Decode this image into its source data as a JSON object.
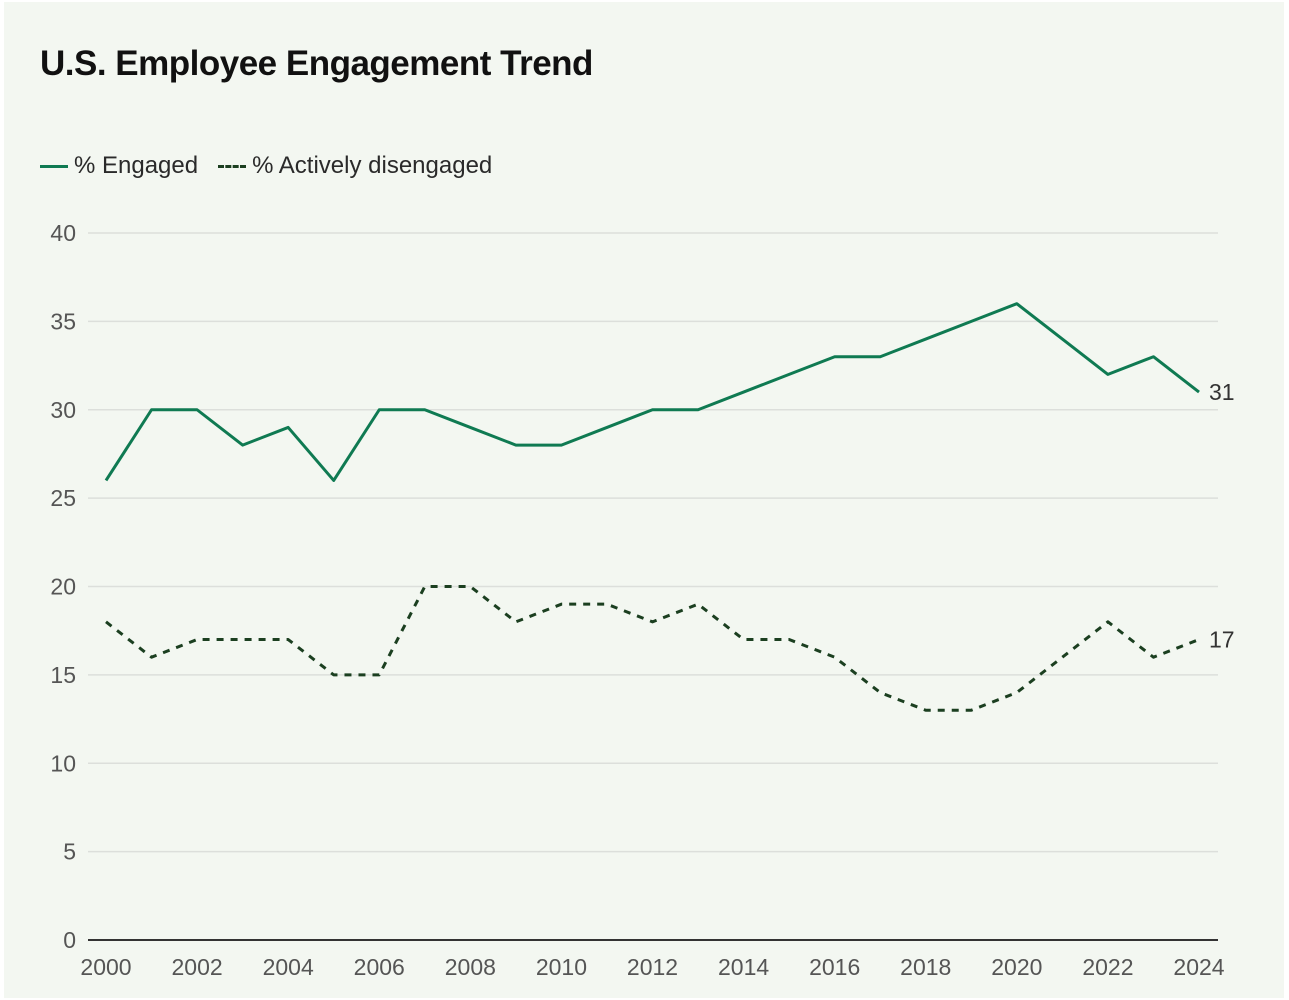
{
  "chart_data": {
    "type": "line",
    "title": "U.S. Employee Engagement Trend",
    "x": [
      2000,
      2001,
      2002,
      2003,
      2004,
      2005,
      2006,
      2007,
      2008,
      2009,
      2010,
      2011,
      2012,
      2013,
      2014,
      2015,
      2016,
      2017,
      2018,
      2019,
      2020,
      2021,
      2022,
      2023,
      2024
    ],
    "series": [
      {
        "name": "% Engaged",
        "style": "solid",
        "color": "#0f7a52",
        "values": [
          26,
          30,
          30,
          28,
          29,
          26,
          30,
          30,
          29,
          28,
          28,
          29,
          30,
          30,
          31,
          32,
          33,
          33,
          34,
          35,
          36,
          34,
          32,
          33,
          31
        ],
        "end_label": "31"
      },
      {
        "name": "% Actively disengaged",
        "style": "dashed",
        "color": "#1b3f20",
        "values": [
          18,
          16,
          17,
          17,
          17,
          15,
          15,
          20,
          20,
          18,
          19,
          19,
          18,
          19,
          17,
          17,
          16,
          14,
          13,
          13,
          14,
          16,
          18,
          16,
          17
        ],
        "end_label": "17"
      }
    ],
    "xticks": [
      "2000",
      "2002",
      "2004",
      "2006",
      "2008",
      "2010",
      "2012",
      "2014",
      "2016",
      "2018",
      "2020",
      "2022",
      "2024"
    ],
    "yticks": [
      "0",
      "5",
      "10",
      "15",
      "20",
      "25",
      "30",
      "35",
      "40"
    ],
    "ylim": [
      0,
      40
    ],
    "xlim": [
      2000,
      2024
    ],
    "grid": true,
    "legend_position": "top-left",
    "background": "#f3f7f1"
  }
}
